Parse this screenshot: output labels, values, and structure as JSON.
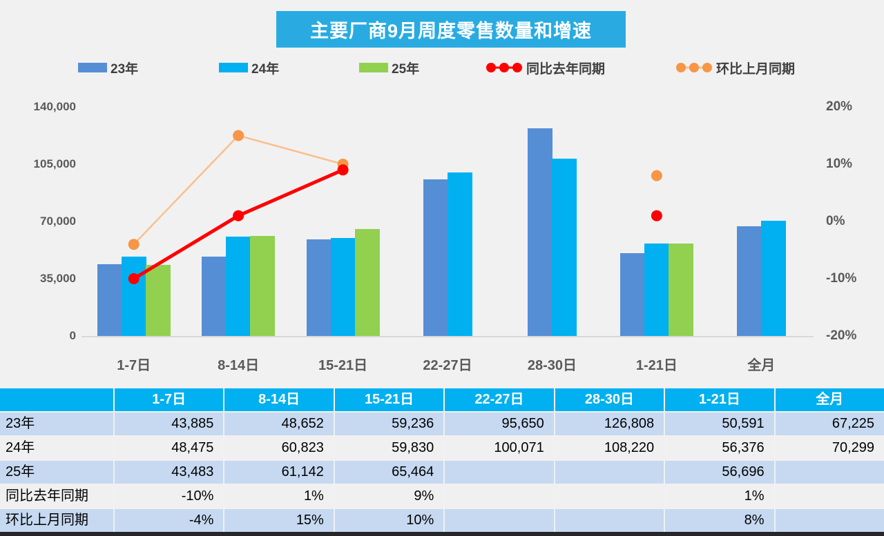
{
  "title": "主要厂商9月周度零售数量和增速",
  "colors": {
    "title_bg": "#29ABE2",
    "bar_23": "#558ED5",
    "bar_24": "#00B0F0",
    "bar_25": "#92D050",
    "yoy_line": "#FF0000",
    "mom_line": "#FBBF8B",
    "mom_marker": "#F79646",
    "axis_text": "#595959",
    "table_header_bg": "#00B0F0",
    "table_row_blue": "#C6D9F1",
    "table_row_gray": "#F0F0F1"
  },
  "chart_data": {
    "type": "combo-bar-line",
    "title": "主要厂商9月周度零售数量和增速",
    "categories": [
      "1-7日",
      "8-14日",
      "15-21日",
      "22-27日",
      "28-30日",
      "1-21日",
      "全月"
    ],
    "bar_series": [
      {
        "name": "23年",
        "color": "#558ED5",
        "values": [
          43885,
          48652,
          59236,
          95650,
          126808,
          50591,
          67225
        ]
      },
      {
        "name": "24年",
        "color": "#00B0F0",
        "values": [
          48475,
          60823,
          59830,
          100071,
          108220,
          56376,
          70299
        ]
      },
      {
        "name": "25年",
        "color": "#92D050",
        "values": [
          43483,
          61142,
          65464,
          null,
          null,
          56696,
          null
        ]
      }
    ],
    "line_series": [
      {
        "name": "环比上月同期",
        "line_color": "#FBBF8B",
        "marker_color": "#F79646",
        "stroke_width": 2.5,
        "values_pct": [
          -4,
          15,
          10,
          null,
          null,
          8,
          null
        ]
      },
      {
        "name": "同比去年同期",
        "line_color": "#FF0000",
        "marker_color": "#FF0000",
        "stroke_width": 5,
        "values_pct": [
          -10,
          1,
          9,
          null,
          null,
          1,
          null
        ]
      }
    ],
    "left_axis": {
      "ticks": [
        {
          "label": "0",
          "value": 0
        },
        {
          "label": "35,000",
          "value": 35000
        },
        {
          "label": "70,000",
          "value": 70000
        },
        {
          "label": "105,000",
          "value": 105000
        },
        {
          "label": "140,000",
          "value": 140000
        }
      ],
      "max": 140000
    },
    "right_axis": {
      "ticks": [
        {
          "label": "-20%",
          "value": -20
        },
        {
          "label": "-10%",
          "value": -10
        },
        {
          "label": "0%",
          "value": 0
        },
        {
          "label": "10%",
          "value": 10
        },
        {
          "label": "20%",
          "value": 20
        }
      ],
      "range": [
        -20,
        20
      ]
    },
    "legend": [
      {
        "label": "23年",
        "kind": "swatch",
        "color": "#558ED5"
      },
      {
        "label": "24年",
        "kind": "swatch",
        "color": "#00B0F0"
      },
      {
        "label": "25年",
        "kind": "swatch",
        "color": "#92D050"
      },
      {
        "label": "同比去年同期",
        "kind": "line",
        "line_color": "#FF0000",
        "marker_color": "#FF0000"
      },
      {
        "label": "环比上月同期",
        "kind": "line",
        "line_color": "#FBBF8B",
        "marker_color": "#F79646"
      }
    ]
  },
  "table": {
    "header": [
      "",
      "1-7日",
      "8-14日",
      "15-21日",
      "22-27日",
      "28-30日",
      "1-21日",
      "全月"
    ],
    "rows": [
      [
        "23年",
        "43,885",
        "48,652",
        "59,236",
        "95,650",
        "126,808",
        "50,591",
        "67,225"
      ],
      [
        "24年",
        "48,475",
        "60,823",
        "59,830",
        "100,071",
        "108,220",
        "56,376",
        "70,299"
      ],
      [
        "25年",
        "43,483",
        "61,142",
        "65,464",
        "",
        "",
        "56,696",
        ""
      ],
      [
        "同比去年同期",
        "-10%",
        "1%",
        "9%",
        "",
        "",
        "1%",
        ""
      ],
      [
        "环比上月同期",
        "-4%",
        "15%",
        "10%",
        "",
        "",
        "8%",
        ""
      ]
    ]
  }
}
